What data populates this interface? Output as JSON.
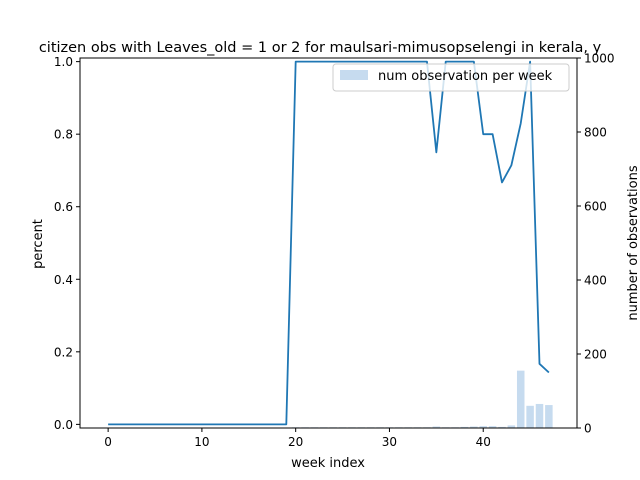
{
  "chart_data": {
    "type": "line",
    "title": "citizen obs with Leaves_old = 1 or 2 for maulsari-mimusopselengi in kerala, y",
    "xlabel": "week index",
    "ylabel": "percent",
    "y2label": "number of observations",
    "xlim": [
      -3,
      50
    ],
    "ylim": [
      -0.01,
      1.01
    ],
    "y2lim": [
      0,
      1000
    ],
    "xticks": [
      "0",
      "10",
      "20",
      "30",
      "40"
    ],
    "yticks": [
      "0.0",
      "0.2",
      "0.4",
      "0.6",
      "0.8",
      "1.0"
    ],
    "y2ticks": [
      "0",
      "200",
      "400",
      "600",
      "800",
      "1000"
    ],
    "legend": {
      "label": "num observation per week",
      "placement": "top-right"
    },
    "colors": {
      "line": "#1f77b4",
      "bars": "#c6dbef"
    },
    "line_series": {
      "x": [
        0,
        1,
        2,
        3,
        4,
        5,
        6,
        7,
        8,
        9,
        10,
        11,
        12,
        13,
        14,
        15,
        16,
        17,
        18,
        19,
        20,
        21,
        22,
        23,
        24,
        25,
        26,
        27,
        28,
        29,
        30,
        31,
        32,
        33,
        34,
        35,
        36,
        37,
        38,
        39,
        40,
        41,
        42,
        43,
        44,
        45,
        46,
        47
      ],
      "values": [
        0,
        0,
        0,
        0,
        0,
        0,
        0,
        0,
        0,
        0,
        0,
        0,
        0,
        0,
        0,
        0,
        0,
        0,
        0,
        0,
        1,
        1,
        1,
        1,
        1,
        1,
        1,
        1,
        1,
        1,
        1,
        1,
        1,
        1,
        1,
        0.75,
        1,
        1,
        1,
        1,
        0.8,
        0.8,
        0.667,
        0.714,
        0.83,
        1,
        0.167,
        0.143
      ]
    },
    "bar_series": {
      "name": "num observation per week",
      "x": [
        0,
        1,
        2,
        3,
        4,
        5,
        6,
        7,
        8,
        9,
        10,
        11,
        12,
        13,
        14,
        15,
        16,
        17,
        18,
        19,
        20,
        21,
        22,
        23,
        24,
        25,
        26,
        27,
        28,
        29,
        30,
        31,
        32,
        33,
        34,
        35,
        36,
        37,
        38,
        39,
        40,
        41,
        42,
        43,
        44,
        45,
        46,
        47
      ],
      "values": [
        0,
        0,
        0,
        0,
        0,
        0,
        0,
        0,
        0,
        0,
        0,
        0,
        0,
        0,
        0,
        0,
        0,
        0,
        0,
        0,
        2,
        2,
        2,
        2,
        2,
        2,
        2,
        2,
        2,
        2,
        2,
        2,
        2,
        2,
        2,
        4,
        2,
        2,
        3,
        4,
        5,
        5,
        3,
        7,
        155,
        60,
        65,
        62
      ]
    }
  }
}
